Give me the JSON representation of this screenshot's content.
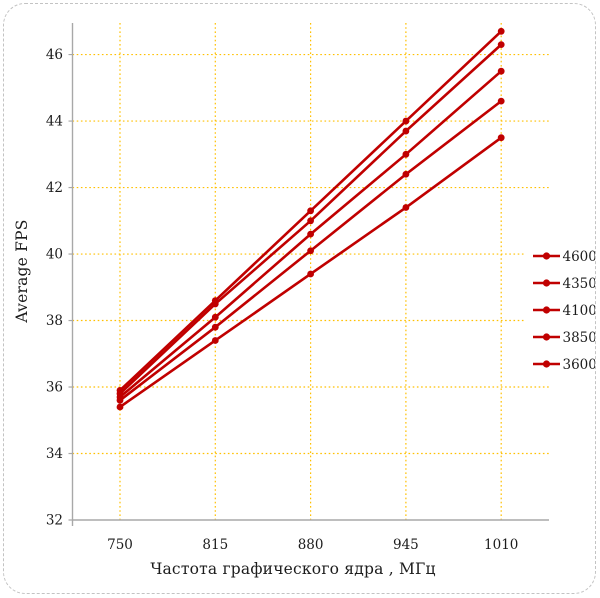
{
  "chart_data": {
    "type": "line",
    "title": "",
    "xlabel": "Частота графического ядра , МГц",
    "ylabel": "Average FPS",
    "categories": [
      "750",
      "815",
      "880",
      "945",
      "1010"
    ],
    "series": [
      {
        "name": "4600",
        "values": [
          35.9,
          38.6,
          41.3,
          44.0,
          46.7
        ]
      },
      {
        "name": "4350",
        "values": [
          35.8,
          38.5,
          41.0,
          43.7,
          46.3
        ]
      },
      {
        "name": "4100",
        "values": [
          35.7,
          38.1,
          40.6,
          43.0,
          45.5
        ]
      },
      {
        "name": "3850",
        "values": [
          35.6,
          37.8,
          40.1,
          42.4,
          44.6
        ]
      },
      {
        "name": "3600",
        "values": [
          35.4,
          37.4,
          39.4,
          41.4,
          43.5
        ]
      }
    ],
    "ylim": [
      32,
      46.95
    ],
    "yticks": [
      32,
      34,
      36,
      38,
      40,
      42,
      44,
      46
    ],
    "grid": true,
    "gridline_style": "dotted",
    "legend_position": "right",
    "marker": "circle",
    "colors": {
      "series_line": "#c00000",
      "gridline": "#ffc000",
      "axis_line": "#a8a8a8",
      "tick_text": "#1c1c1c",
      "card_border": "#c3c3c3",
      "background": "#ffffff"
    }
  }
}
